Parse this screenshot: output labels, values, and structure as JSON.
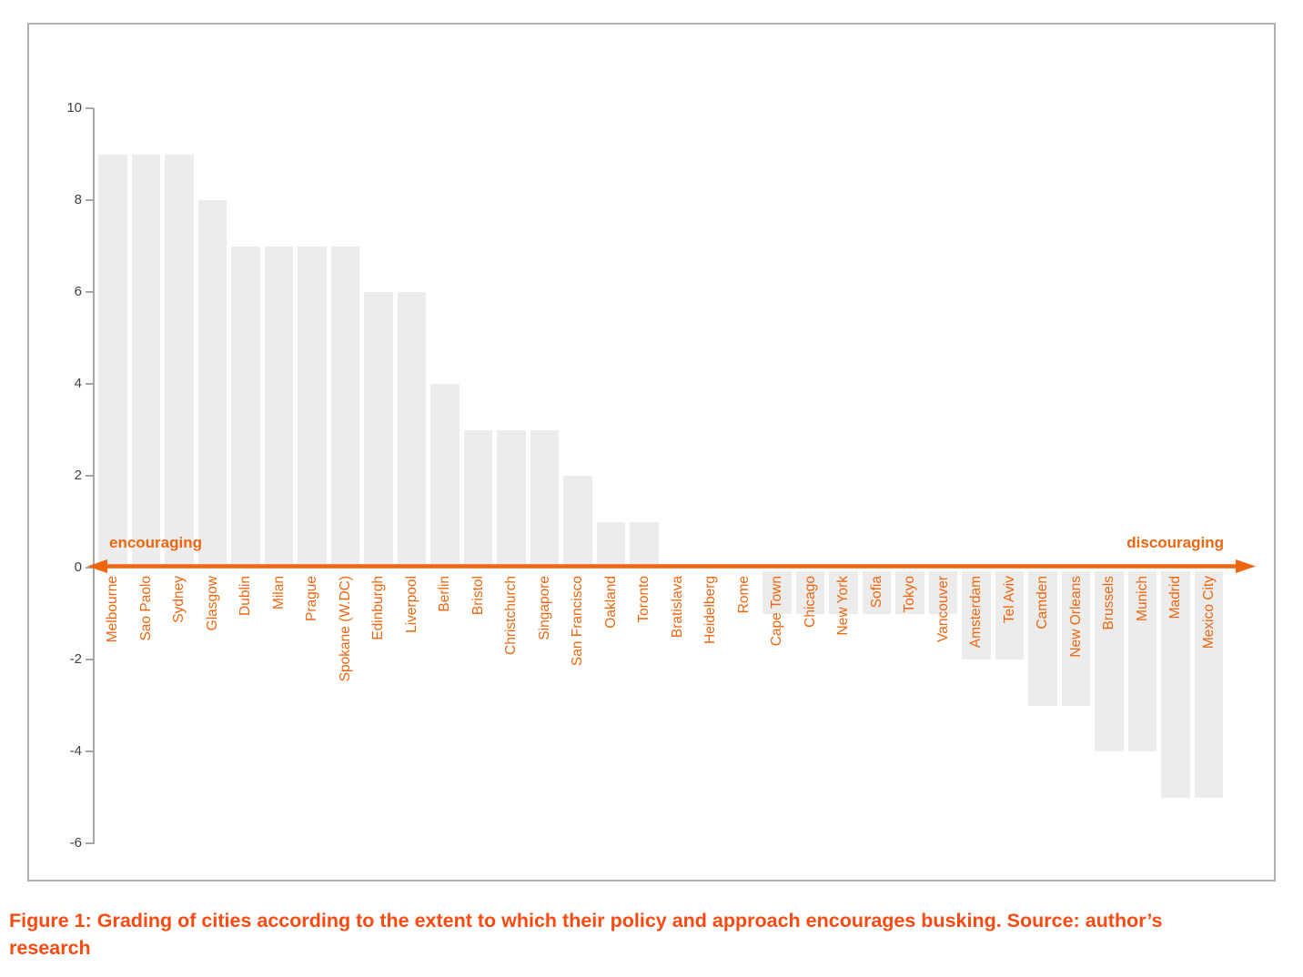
{
  "figure": {
    "caption_line1": "Figure 1: Grading of cities according to the extent to which their policy and approach encourages busking. Source: author’s",
    "caption_line2": "research"
  },
  "annotations": {
    "left_label": "encouraging",
    "right_label": "discouraging"
  },
  "colors": {
    "accent_orange": "#ee660f",
    "caption_orange": "#fb4a12",
    "bar_fill": "#ececec",
    "axis_gray": "#a6a6a6",
    "tick_text": "#3f3f3f",
    "frame_border": "#b0b0b0"
  },
  "chart_data": {
    "type": "bar",
    "title": "",
    "xlabel": "",
    "ylabel": "",
    "grid": false,
    "legend": false,
    "ylim": [
      -6,
      10
    ],
    "y_ticks": [
      10,
      8,
      6,
      4,
      2,
      0,
      -2,
      -4,
      -6
    ],
    "axis_annotation": {
      "left": "encouraging",
      "right": "discouraging"
    },
    "categories": [
      "Melbourne",
      "Sao Paolo",
      "Sydney",
      "Glasgow",
      "Dublin",
      "Milan",
      "Prague",
      "Spokane (W.DC)",
      "Edinburgh",
      "Liverpool",
      "Berlin",
      "Bristol",
      "Christchurch",
      "Singapore",
      "San Francisco",
      "Oakland",
      "Toronto",
      "Bratislava",
      "Heidelberg",
      "Rome",
      "Cape Town",
      "Chicago",
      "New York",
      "Sofia",
      "Tokyo",
      "Vancouver",
      "Amsterdam",
      "Tel Aviv",
      "Camden",
      "New Orleans",
      "Brussels",
      "Munich",
      "Madrid",
      "Mexico City"
    ],
    "values": [
      9,
      9,
      9,
      8,
      7,
      7,
      7,
      7,
      6,
      6,
      4,
      3,
      3,
      3,
      2,
      1,
      1,
      0,
      0,
      0,
      -1,
      -1,
      -1,
      -1,
      -1,
      -1,
      -2,
      -2,
      -3,
      -3,
      -4,
      -4,
      -5,
      -5
    ]
  }
}
